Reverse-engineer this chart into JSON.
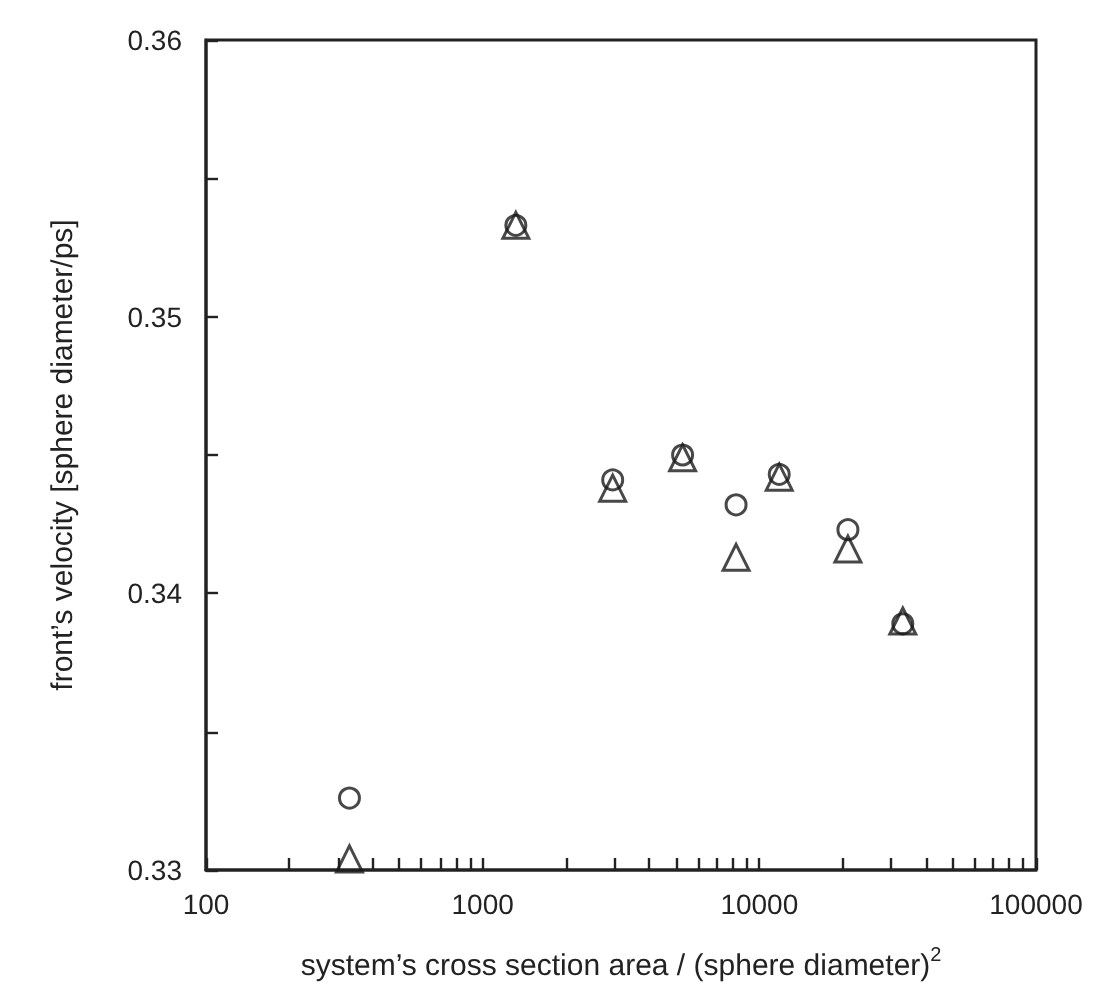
{
  "chart_data": {
    "type": "scatter",
    "xlabel": "system’s cross section area / (sphere diameter)$^{2}$",
    "ylabel": "front’s velocity [sphere diameter/ps]",
    "x": [
      330,
      1318,
      2951,
      5280,
      8240,
      11800,
      20900,
      33000
    ],
    "series": [
      {
        "color": "#1a1a1a",
        "marker": "circle",
        "values": [
          0.3326,
          0.3533,
          0.3441,
          0.345,
          0.3432,
          0.3443,
          0.3423,
          0.3389
        ]
      },
      {
        "color": "#1a1a1a",
        "marker": "triangle",
        "values": [
          0.3304,
          0.3533,
          0.3438,
          0.3449,
          0.3413,
          0.3442,
          0.3416,
          0.339
        ]
      }
    ],
    "log": "x",
    "grid": false,
    "xlim": [
      100,
      100000
    ],
    "xticks": [
      100,
      {
        "value": 200,
        "label": null
      },
      {
        "value": 300,
        "label": null
      },
      {
        "value": 400,
        "label": null
      },
      {
        "value": 500,
        "label": null
      },
      {
        "value": 600,
        "label": null
      },
      {
        "value": 700,
        "label": null
      },
      {
        "value": 800,
        "label": null
      },
      {
        "value": 900,
        "label": null
      },
      1000,
      {
        "value": 2000,
        "label": null
      },
      {
        "value": 3000,
        "label": null
      },
      {
        "value": 4000,
        "label": null
      },
      {
        "value": 5000,
        "label": null
      },
      {
        "value": 6000,
        "label": null
      },
      {
        "value": 7000,
        "label": null
      },
      {
        "value": 8000,
        "label": null
      },
      {
        "value": 9000,
        "label": null
      },
      10000,
      {
        "value": 20000,
        "label": null
      },
      {
        "value": 30000,
        "label": null
      },
      {
        "value": 40000,
        "label": null
      },
      {
        "value": 50000,
        "label": null
      },
      {
        "value": 60000,
        "label": null
      },
      {
        "value": 70000,
        "label": null
      },
      {
        "value": 80000,
        "label": null
      },
      {
        "value": 90000,
        "label": null
      },
      100000
    ],
    "ylim": [
      0.33,
      0.36
    ],
    "yticks": [
      0.33,
      {
        "value": 0.335,
        "label": null
      },
      0.34,
      {
        "value": 0.345,
        "label": null
      },
      0.35,
      {
        "value": 0.355,
        "label": null
      },
      0.36
    ]
  }
}
